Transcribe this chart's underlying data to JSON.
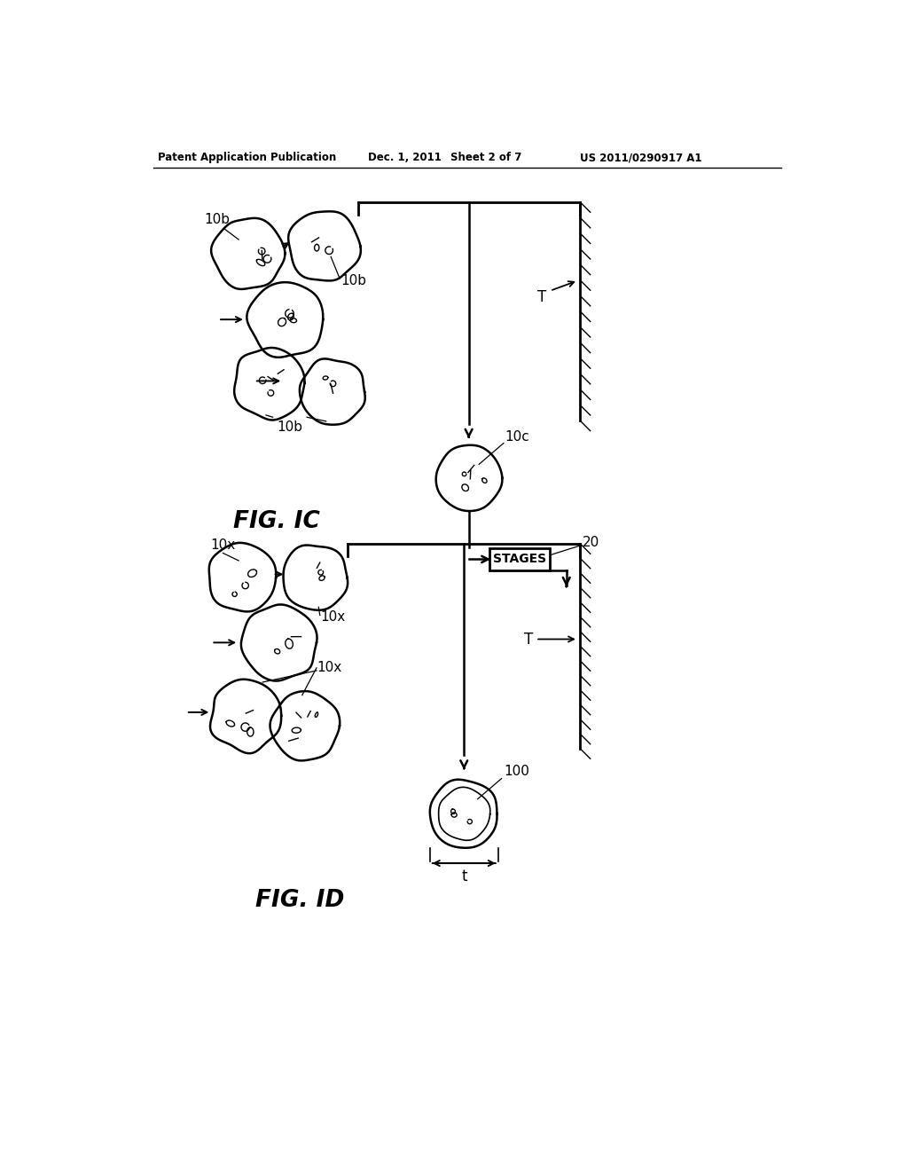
{
  "bg_color": "#ffffff",
  "header_text": "Patent Application Publication",
  "header_date": "Dec. 1, 2011",
  "header_sheet": "Sheet 2 of 7",
  "header_patent": "US 2011/0290917 A1",
  "fig1c_label": "FIG. IC",
  "fig1d_label": "FIG. ID",
  "label_10b_topleft": "10b",
  "label_10b_mid": "10b",
  "label_10b_bot": "10b",
  "label_10c": "10c",
  "label_20": "20",
  "label_T_top": "T",
  "label_10x_top": "10x",
  "label_10x_mid": "10x",
  "label_10x_bot": "10x",
  "label_100": "100",
  "label_T_bot": "T",
  "label_t": "t",
  "stages_text": "STAGES"
}
